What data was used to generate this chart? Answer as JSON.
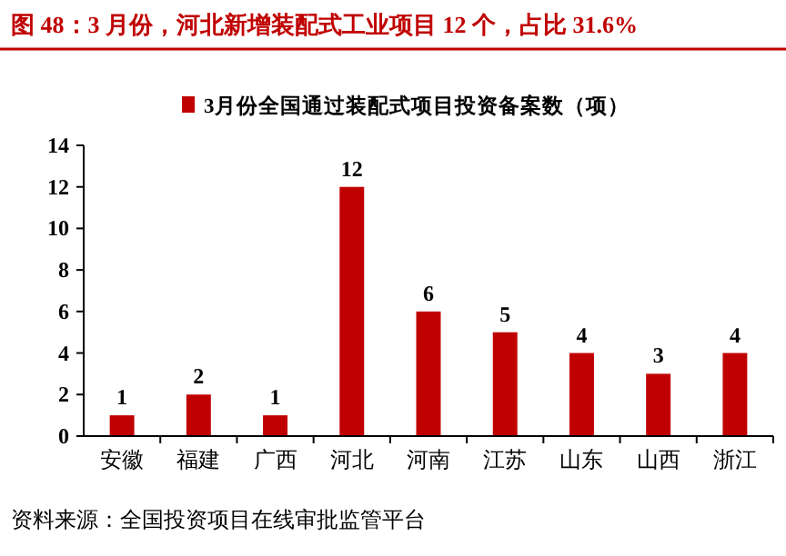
{
  "chart_data": {
    "type": "bar",
    "title": "图 48：3 月份，河北新增装配式工业项目 12 个，占比 31.6%",
    "categories": [
      "安徽",
      "福建",
      "广西",
      "河北",
      "河南",
      "江苏",
      "山东",
      "山西",
      "浙江"
    ],
    "series": [
      {
        "name": "3月份全国通过装配式项目投资备案数（项）",
        "color": "#c00000",
        "values": [
          1,
          2,
          1,
          12,
          6,
          5,
          4,
          3,
          4
        ]
      }
    ],
    "ylim": [
      0,
      14
    ],
    "yticks": [
      0,
      2,
      4,
      6,
      8,
      10,
      12,
      14
    ],
    "data_labels": true,
    "legend": "top",
    "grid": false,
    "annotations": [
      "资料来源：全国投资项目在线审批监管平台"
    ]
  }
}
